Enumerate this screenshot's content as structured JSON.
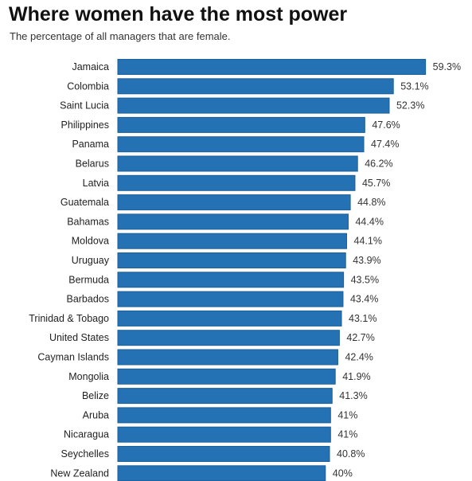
{
  "header": {
    "title": "Where women have the most power",
    "subtitle": "The percentage of all managers that are female."
  },
  "colors": {
    "bar": "#2472b4",
    "bar_edge": "#1d5f97"
  },
  "chart_data": {
    "type": "bar",
    "orientation": "horizontal",
    "title": "Where women have the most power",
    "subtitle": "The percentage of all managers that are female.",
    "xlabel": "",
    "ylabel": "",
    "grid": false,
    "categories": [
      "Jamaica",
      "Colombia",
      "Saint Lucia",
      "Philippines",
      "Panama",
      "Belarus",
      "Latvia",
      "Guatemala",
      "Bahamas",
      "Moldova",
      "Uruguay",
      "Bermuda",
      "Barbados",
      "Trinidad & Tobago",
      "United States",
      "Cayman Islands",
      "Mongolia",
      "Belize",
      "Aruba",
      "Nicaragua",
      "Seychelles",
      "New Zealand"
    ],
    "values": [
      59.3,
      53.1,
      52.3,
      47.6,
      47.4,
      46.2,
      45.7,
      44.8,
      44.4,
      44.1,
      43.9,
      43.5,
      43.4,
      43.1,
      42.7,
      42.4,
      41.9,
      41.3,
      41,
      41,
      40.8,
      40
    ],
    "value_labels": [
      "59.3%",
      "53.1%",
      "52.3%",
      "47.6%",
      "47.4%",
      "46.2%",
      "45.7%",
      "44.8%",
      "44.4%",
      "44.1%",
      "43.9%",
      "43.5%",
      "43.4%",
      "43.1%",
      "42.7%",
      "42.4%",
      "41.9%",
      "41.3%",
      "41%",
      "41%",
      "40.8%",
      "40%"
    ]
  }
}
